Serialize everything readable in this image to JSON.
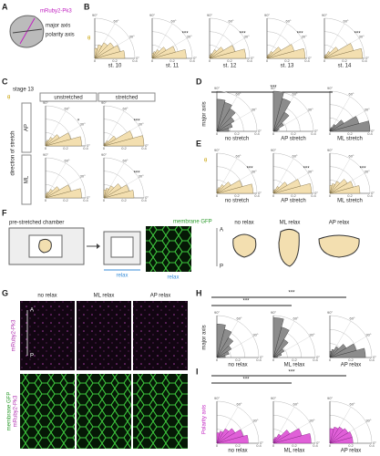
{
  "angle_labels": [
    "90°",
    "60°",
    "30°",
    "0°"
  ],
  "rticks": [
    0,
    0.2,
    0.4
  ],
  "rmax": 0.4,
  "panel_a": {
    "letter": "A",
    "marker": "mRuby2-Pk3",
    "major": "major axis",
    "polarity": "polarity axis"
  },
  "panel_b": {
    "letter": "B",
    "theta": "θ",
    "plots": [
      {
        "label": "st. 10",
        "values": [
          0.3,
          0.26,
          0.22,
          0.18,
          0.14,
          0.1
        ]
      },
      {
        "label": "st. 11",
        "values": [
          0.34,
          0.24,
          0.16,
          0.1,
          0.07,
          0.05
        ],
        "stars": "***"
      },
      {
        "label": "st. 12",
        "values": [
          0.36,
          0.26,
          0.16,
          0.1,
          0.05,
          0.03
        ],
        "stars": "***"
      },
      {
        "label": "st. 13",
        "values": [
          0.38,
          0.28,
          0.16,
          0.08,
          0.04,
          0.02
        ],
        "stars": "***"
      },
      {
        "label": "st. 14",
        "values": [
          0.38,
          0.3,
          0.16,
          0.08,
          0.04,
          0.02
        ],
        "stars": "***"
      }
    ]
  },
  "panel_c": {
    "letter": "C",
    "stage": "stage 13",
    "theta": "θ",
    "columns": [
      "unstretched",
      "stretched"
    ],
    "rows": [
      "AP",
      "ML"
    ],
    "ylabel": "direction of stretch",
    "plots": [
      {
        "values": [
          0.36,
          0.26,
          0.16,
          0.1,
          0.06,
          0.04
        ],
        "stars": "*"
      },
      {
        "values": [
          0.4,
          0.3,
          0.14,
          0.06,
          0.03,
          0.02
        ],
        "stars": "***"
      },
      {
        "values": [
          0.36,
          0.26,
          0.16,
          0.1,
          0.06,
          0.04
        ]
      },
      {
        "values": [
          0.3,
          0.26,
          0.2,
          0.14,
          0.1,
          0.08
        ],
        "stars": "***"
      }
    ]
  },
  "panel_d": {
    "letter": "D",
    "ylabel": "major axis",
    "stars": "***",
    "plots": [
      {
        "label": "no stretch",
        "values": [
          0.12,
          0.16,
          0.2,
          0.26,
          0.3,
          0.32
        ]
      },
      {
        "label": "AP stretch",
        "values": [
          0.04,
          0.06,
          0.12,
          0.22,
          0.34,
          0.4
        ]
      },
      {
        "label": "ML stretch",
        "values": [
          0.4,
          0.3,
          0.16,
          0.08,
          0.04,
          0.02
        ]
      }
    ]
  },
  "panel_e": {
    "letter": "E",
    "theta": "θ",
    "plots": [
      {
        "label": "no stretch",
        "values": [
          0.36,
          0.26,
          0.16,
          0.1,
          0.06,
          0.04
        ],
        "stars": "***"
      },
      {
        "label": "AP stretch",
        "values": [
          0.38,
          0.28,
          0.16,
          0.08,
          0.04,
          0.03
        ],
        "stars": "***"
      },
      {
        "label": "ML stretch",
        "values": [
          0.3,
          0.24,
          0.2,
          0.14,
          0.1,
          0.08
        ],
        "stars": "***"
      }
    ]
  },
  "panel_f": {
    "letter": "F",
    "chamber": "pre-stretched chamber",
    "relax1": "relax",
    "relax2": "relax",
    "gfp": "membrane GFP",
    "shapes": [
      "no relax",
      "ML relax",
      "AP relax"
    ],
    "a": "A",
    "p": "P"
  },
  "panel_g": {
    "letter": "G",
    "columns": [
      "no relax",
      "ML relax",
      "AP relax"
    ],
    "row1": "mRuby2-Pk3",
    "row2a": "membrane GFP",
    "row2b": "mRuby2-Pk3",
    "a": "A",
    "p": "P"
  },
  "panel_h": {
    "letter": "H",
    "ylabel": "major axis",
    "stars1": "***",
    "stars2": "***",
    "plots": [
      {
        "label": "no relax",
        "values": [
          0.08,
          0.12,
          0.16,
          0.22,
          0.28,
          0.32
        ]
      },
      {
        "label": "ML relax",
        "values": [
          0.04,
          0.08,
          0.12,
          0.2,
          0.3,
          0.38
        ]
      },
      {
        "label": "AP relax",
        "values": [
          0.34,
          0.26,
          0.18,
          0.12,
          0.08,
          0.06
        ]
      }
    ]
  },
  "panel_i": {
    "letter": "I",
    "ylabel": "Polarity axis",
    "stars1": "***",
    "stars2": "***",
    "plots": [
      {
        "label": "no relax",
        "values": [
          0.3,
          0.26,
          0.2,
          0.16,
          0.12,
          0.1
        ]
      },
      {
        "label": "ML relax",
        "values": [
          0.36,
          0.28,
          0.18,
          0.1,
          0.06,
          0.04
        ]
      },
      {
        "label": "AP relax",
        "values": [
          0.22,
          0.22,
          0.2,
          0.18,
          0.16,
          0.14
        ]
      }
    ]
  }
}
